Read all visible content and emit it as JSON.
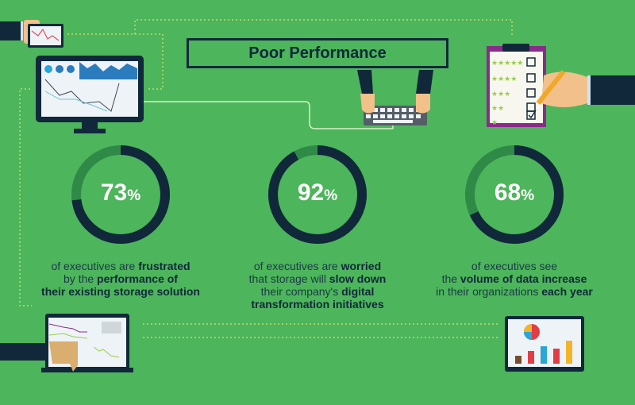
{
  "title": "Poor Performance",
  "colors": {
    "background": "#4db55b",
    "dark": "#10283a",
    "ring_remainder": "#2f8a47"
  },
  "stats": [
    {
      "value": 73,
      "label": "73",
      "unit": "%",
      "lines": [
        [
          {
            "t": "of executives are ",
            "b": false
          },
          {
            "t": "frustrated",
            "b": true
          }
        ],
        [
          {
            "t": "by the ",
            "b": false
          },
          {
            "t": "performance of",
            "b": true
          }
        ],
        [
          {
            "t": "their existing storage solution",
            "b": true
          }
        ]
      ]
    },
    {
      "value": 92,
      "label": "92",
      "unit": "%",
      "lines": [
        [
          {
            "t": "of executives are ",
            "b": false
          },
          {
            "t": "worried",
            "b": true
          }
        ],
        [
          {
            "t": "that storage will ",
            "b": false
          },
          {
            "t": "slow down",
            "b": true
          }
        ],
        [
          {
            "t": "their company's ",
            "b": false
          },
          {
            "t": "digital",
            "b": true
          }
        ],
        [
          {
            "t": "transformation initiatives",
            "b": true
          }
        ]
      ]
    },
    {
      "value": 68,
      "label": "68",
      "unit": "%",
      "lines": [
        [
          {
            "t": "of executives see",
            "b": false
          }
        ],
        [
          {
            "t": "the ",
            "b": false
          },
          {
            "t": "volume of data increase",
            "b": true
          }
        ],
        [
          {
            "t": "in their organizations ",
            "b": false
          },
          {
            "t": "each year",
            "b": true
          }
        ]
      ]
    }
  ]
}
